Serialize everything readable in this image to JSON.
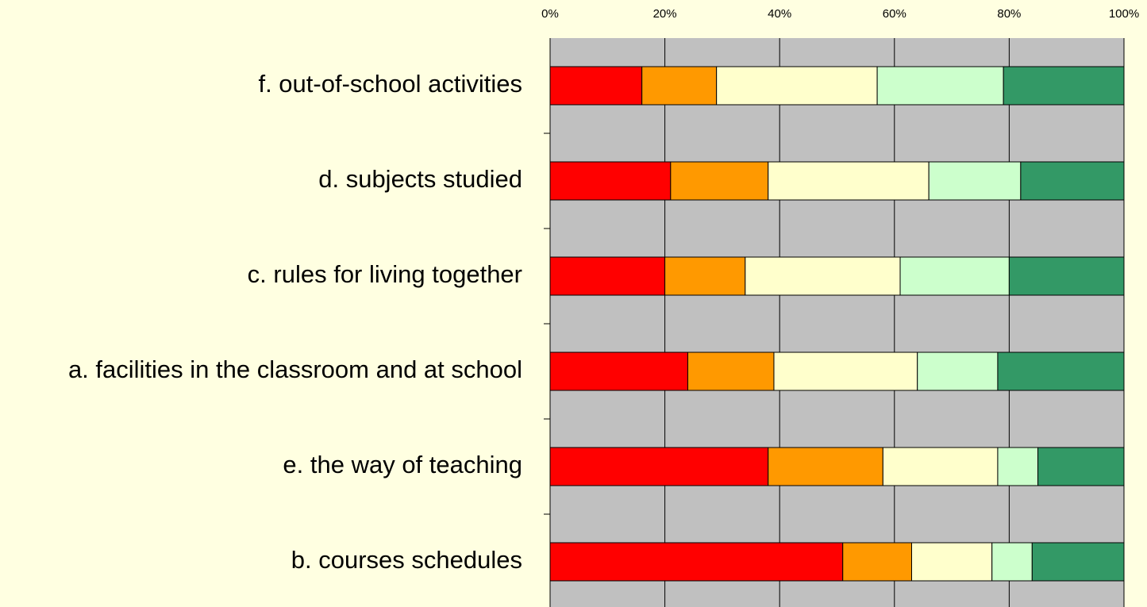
{
  "chart_data": {
    "type": "stacked-bar-horizontal",
    "categories": [
      "f. out-of-school activities",
      "d. subjects studied",
      "c. rules for living together",
      "a. facilities in the classroom and at school",
      "e. the way of teaching",
      "b. courses schedules"
    ],
    "series": [
      {
        "color": "#ff0000",
        "values": [
          16,
          21,
          20,
          24,
          38,
          51
        ]
      },
      {
        "color": "#ff9900",
        "values": [
          13,
          17,
          14,
          15,
          20,
          12
        ]
      },
      {
        "color": "#ffffcc",
        "values": [
          28,
          28,
          27,
          25,
          20,
          14
        ]
      },
      {
        "color": "#ccffcc",
        "values": [
          22,
          16,
          19,
          14,
          7,
          7
        ]
      },
      {
        "color": "#339966",
        "values": [
          21,
          18,
          20,
          22,
          15,
          16
        ]
      }
    ],
    "xlim": [
      0,
      100
    ],
    "xticks": [
      {
        "value": 0,
        "label": "0%"
      },
      {
        "value": 20,
        "label": "20%"
      },
      {
        "value": 40,
        "label": "40%"
      },
      {
        "value": 60,
        "label": "60%"
      },
      {
        "value": 80,
        "label": "80%"
      },
      {
        "value": 100,
        "label": "100%"
      }
    ],
    "grid": true
  }
}
